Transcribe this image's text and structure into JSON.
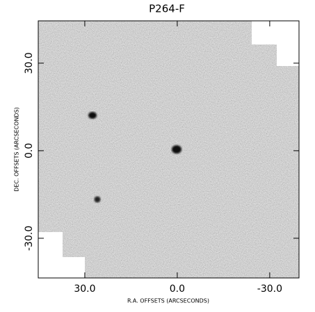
{
  "chart_data": {
    "type": "image",
    "title": "P264-F",
    "xlabel": "R.A. OFFSETS (ARCSECONDS)",
    "ylabel": "DEC. OFFSETS (ARCSECONDS)",
    "xlim": [
      45.1,
      -39.5
    ],
    "ylim": [
      -43.6,
      44.5
    ],
    "xticks": [
      {
        "value": 30,
        "label": "30.0"
      },
      {
        "value": 0,
        "label": "0.0"
      },
      {
        "value": -30,
        "label": "-30.0"
      }
    ],
    "yticks": [
      {
        "value": 30,
        "label": "30.0"
      },
      {
        "value": 0,
        "label": "0.0"
      },
      {
        "value": -30,
        "label": "-30.0"
      }
    ]
  }
}
